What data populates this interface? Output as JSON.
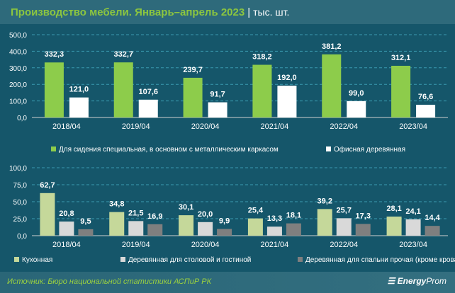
{
  "header": {
    "title": "Производство мебели. Январь–апрель 2023",
    "separator": "|",
    "unit": "тыс. шт."
  },
  "footer": {
    "source": "Источник: Бюро национальной статистики АСПиР РК",
    "logo": "EnergyProm",
    "logo_bold": "Energy",
    "logo_thin": "Prom"
  },
  "chart_data": [
    {
      "type": "bar",
      "categories": [
        "2018/04",
        "2019/04",
        "2020/04",
        "2021/04",
        "2022/04",
        "2023/04"
      ],
      "ylim": [
        0,
        500
      ],
      "yticks": [
        "0,0",
        "100,0",
        "200,0",
        "300,0",
        "400,0",
        "500,0"
      ],
      "ytick_values": [
        0,
        100,
        200,
        300,
        400,
        500
      ],
      "series": [
        {
          "name": "Для сидения специальная, в основном с металлическим каркасом",
          "color": "#8dcc4b",
          "values": [
            332.3,
            332.7,
            239.7,
            318.2,
            381.2,
            312.1
          ],
          "labels": [
            "332,3",
            "332,7",
            "239,7",
            "318,2",
            "381,2",
            "312,1"
          ]
        },
        {
          "name": "Офисная деревянная",
          "color": "#ffffff",
          "values": [
            121.0,
            107.6,
            91.7,
            192.0,
            99.0,
            76.6
          ],
          "labels": [
            "121,0",
            "107,6",
            "91,7",
            "192,0",
            "99,0",
            "76,6"
          ]
        }
      ],
      "legend": "bottom"
    },
    {
      "type": "bar",
      "categories": [
        "2018/04",
        "2019/04",
        "2020/04",
        "2021/04",
        "2022/04",
        "2023/04"
      ],
      "ylim": [
        0,
        100
      ],
      "yticks": [
        "0,0",
        "25,0",
        "50,0",
        "75,0",
        "100,0"
      ],
      "ytick_values": [
        0,
        25,
        50,
        75,
        100
      ],
      "series": [
        {
          "name": "Кухонная",
          "color": "#c5d89a",
          "values": [
            62.7,
            34.8,
            30.1,
            25.4,
            39.2,
            28.1
          ],
          "labels": [
            "62,7",
            "34,8",
            "30,1",
            "25,4",
            "39,2",
            "28,1"
          ]
        },
        {
          "name": "Деревянная для столовой и гостиной",
          "color": "#d9d9d9",
          "values": [
            20.8,
            21.5,
            20.0,
            13.3,
            25.7,
            24.1
          ],
          "labels": [
            "20,8",
            "21,5",
            "20,0",
            "13,3",
            "25,7",
            "24,1"
          ]
        },
        {
          "name": "Деревянная для спальни прочая (кроме кроватей и шкафов)",
          "color": "#7f7f7f",
          "values": [
            9.5,
            16.9,
            9.9,
            18.1,
            17.3,
            14.4
          ],
          "labels": [
            "9,5",
            "16,9",
            "9,9",
            "18,1",
            "17,3",
            "14,4"
          ]
        }
      ],
      "legend": "bottom"
    }
  ]
}
